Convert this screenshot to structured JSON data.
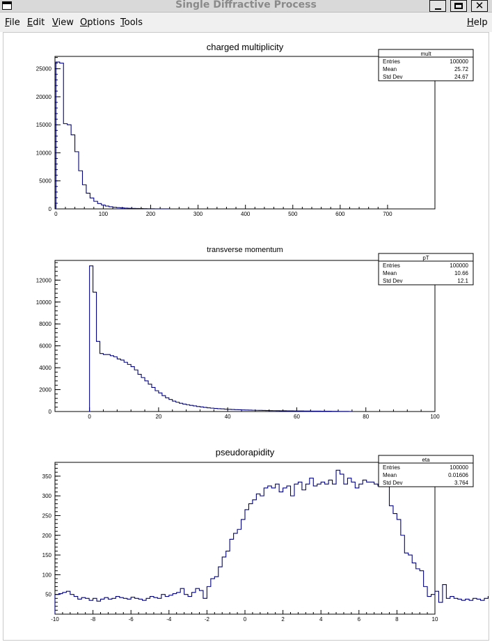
{
  "window": {
    "title": "Single Diffractive Process",
    "minimize_icon": "minimize-icon",
    "maximize_icon": "maximize-icon",
    "close_icon": "close-icon"
  },
  "menu": {
    "file": "File",
    "edit": "Edit",
    "view": "View",
    "options": "Options",
    "tools": "Tools",
    "help": "Help"
  },
  "colors": {
    "histogram_line": "#00007f",
    "frame": "#000000",
    "background": "#ffffff"
  },
  "chart_data": [
    {
      "type": "histogram",
      "title": "charged multiplicity",
      "xlabel": "",
      "ylabel": "",
      "xlim": [
        -2,
        800
      ],
      "ylim": [
        0,
        27200
      ],
      "xticks": [
        0,
        100,
        200,
        300,
        400,
        500,
        600,
        700
      ],
      "yticks": [
        0,
        5000,
        10000,
        15000,
        20000,
        25000
      ],
      "bin_edges_start": 0,
      "bin_width": 8,
      "values": [
        26200,
        26000,
        15200,
        15000,
        13200,
        10200,
        6800,
        4300,
        2800,
        1950,
        1350,
        950,
        700,
        500,
        380,
        290,
        230,
        180,
        140,
        110,
        90,
        70,
        55,
        40,
        30,
        22,
        15,
        10,
        6,
        3
      ],
      "stats": {
        "name": "mult",
        "rows": [
          [
            "Entries",
            "100000"
          ],
          [
            "Mean",
            "25.72"
          ],
          [
            "Std Dev",
            "24.67"
          ]
        ]
      },
      "grid": false,
      "stats_box": "top-right"
    },
    {
      "type": "histogram",
      "title": "transverse momentum",
      "xlabel": "",
      "ylabel": "",
      "xlim": [
        -10,
        100
      ],
      "ylim": [
        0,
        13800
      ],
      "xticks": [
        0,
        20,
        40,
        60,
        80,
        100
      ],
      "yticks": [
        0,
        2000,
        4000,
        6000,
        8000,
        10000,
        12000
      ],
      "bin_edges_start": 0,
      "bin_width": 1,
      "values": [
        13300,
        10900,
        6400,
        5300,
        5200,
        5200,
        5100,
        5000,
        4800,
        4700,
        4500,
        4300,
        4100,
        3800,
        3400,
        3100,
        2800,
        2500,
        2200,
        1900,
        1700,
        1450,
        1250,
        1100,
        950,
        850,
        750,
        680,
        620,
        560,
        510,
        460,
        420,
        380,
        340,
        310,
        280,
        260,
        240,
        220,
        200,
        185,
        170,
        160,
        150,
        140,
        130,
        120,
        112,
        105,
        98,
        92,
        86,
        80,
        75,
        70,
        66,
        62,
        58,
        55,
        52,
        49,
        46,
        43,
        40,
        37,
        34,
        31,
        28,
        25,
        22,
        19,
        16,
        13,
        10,
        7
      ],
      "stats": {
        "name": "pT",
        "rows": [
          [
            "Entries",
            "100000"
          ],
          [
            "Mean",
            "10.66"
          ],
          [
            "Std Dev",
            "12.1"
          ]
        ]
      },
      "grid": false,
      "stats_box": "top-right"
    },
    {
      "type": "histogram",
      "title": "pseudorapidity",
      "xlabel": "",
      "ylabel": "",
      "xlim": [
        -10,
        10
      ],
      "ylim": [
        0,
        385
      ],
      "xticks": [
        -10,
        -8,
        -6,
        -4,
        -2,
        0,
        2,
        4,
        6,
        8,
        10
      ],
      "yticks": [
        50,
        100,
        150,
        200,
        250,
        300,
        350
      ],
      "bin_edges_start": -10,
      "bin_width": 0.2,
      "values": [
        50,
        52,
        55,
        58,
        50,
        45,
        38,
        42,
        40,
        35,
        40,
        33,
        38,
        42,
        38,
        40,
        45,
        42,
        40,
        38,
        43,
        40,
        38,
        35,
        40,
        45,
        42,
        40,
        50,
        45,
        48,
        52,
        55,
        65,
        50,
        45,
        55,
        65,
        60,
        40,
        70,
        90,
        95,
        120,
        145,
        160,
        190,
        205,
        215,
        240,
        265,
        280,
        290,
        305,
        300,
        320,
        325,
        320,
        330,
        310,
        320,
        325,
        300,
        330,
        335,
        315,
        330,
        345,
        325,
        330,
        335,
        330,
        340,
        330,
        365,
        355,
        330,
        345,
        335,
        320,
        330,
        340,
        335,
        335,
        330,
        325,
        330,
        325,
        275,
        255,
        240,
        200,
        155,
        150,
        130,
        115,
        110,
        70,
        45,
        50,
        58,
        30,
        75,
        40,
        45,
        40,
        38,
        35,
        38,
        35,
        40,
        38,
        35,
        40,
        45,
        38,
        35,
        40,
        35,
        45,
        50,
        45,
        55,
        60,
        55,
        62,
        58,
        60,
        65,
        60
      ],
      "stats": {
        "name": "eta",
        "rows": [
          [
            "Entries",
            "100000"
          ],
          [
            "Mean",
            "0.01606"
          ],
          [
            "Std Dev",
            "3.764"
          ]
        ]
      },
      "grid": false,
      "stats_box": "top-right"
    }
  ]
}
